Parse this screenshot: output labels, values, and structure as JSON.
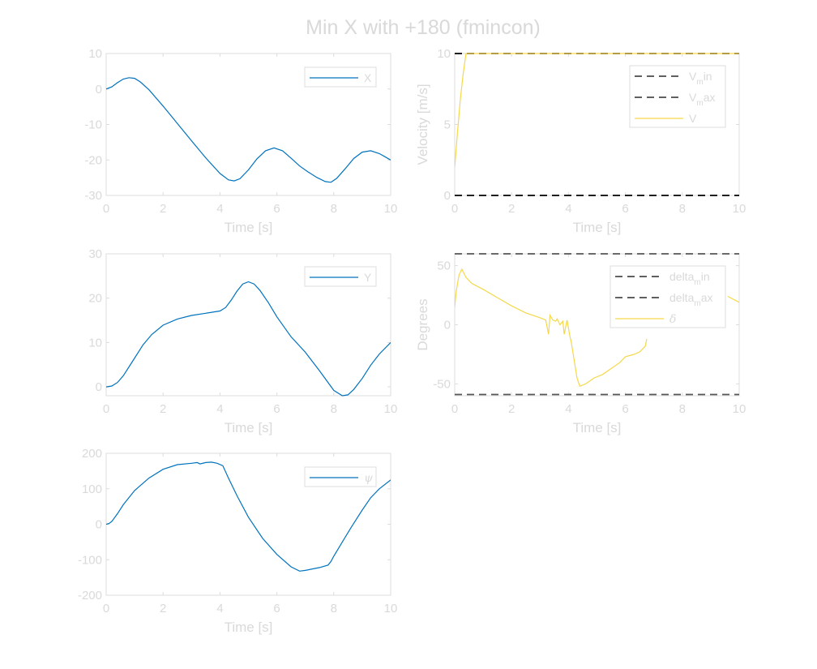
{
  "title": "Min X with +180 (fmincon)",
  "colors": {
    "blue": "#0072bd",
    "yellow": "#f5d84a",
    "grey_dash": "#555555",
    "black_dash": "#000000",
    "axis": "#dcdcdc",
    "text": "#d9d9d9"
  },
  "chart_data": [
    {
      "id": "x",
      "type": "line",
      "xlabel": "Time [s]",
      "ylabel": "",
      "xlim": [
        0,
        10
      ],
      "ylim": [
        -30,
        10
      ],
      "xticks": [
        "0",
        "2",
        "4",
        "6",
        "8",
        "10"
      ],
      "yticks": [
        "-30",
        "-20",
        "-10",
        "0",
        "10"
      ],
      "legend_position": "top-right",
      "series": [
        {
          "legend": "X",
          "color": "#0072bd",
          "style": "solid",
          "x": [
            0,
            0.2,
            0.4,
            0.6,
            0.8,
            1.0,
            1.2,
            1.5,
            2.0,
            2.5,
            3.0,
            3.5,
            4.0,
            4.3,
            4.5,
            4.7,
            5.0,
            5.3,
            5.6,
            5.9,
            6.2,
            6.5,
            6.8,
            7.1,
            7.4,
            7.7,
            7.9,
            8.1,
            8.4,
            8.7,
            9.0,
            9.3,
            9.6,
            9.8,
            10.0
          ],
          "y": [
            0,
            0.6,
            1.8,
            2.8,
            3.2,
            3.0,
            2.0,
            -0.2,
            -4.8,
            -9.7,
            -14.6,
            -19.4,
            -23.8,
            -25.6,
            -25.9,
            -25.3,
            -22.8,
            -19.7,
            -17.4,
            -16.6,
            -17.4,
            -19.5,
            -21.7,
            -23.4,
            -24.9,
            -26.1,
            -26.3,
            -25.2,
            -22.5,
            -19.6,
            -17.8,
            -17.4,
            -18.2,
            -19.1,
            -20.0
          ]
        }
      ]
    },
    {
      "id": "velocity",
      "type": "line",
      "xlabel": "Time [s]",
      "ylabel": "Velocity [m/s]",
      "xlim": [
        0,
        10
      ],
      "ylim": [
        0,
        10
      ],
      "xticks": [
        "0",
        "2",
        "4",
        "6",
        "8",
        "10"
      ],
      "yticks": [
        "0",
        "5",
        "10"
      ],
      "legend_position": "top-right",
      "series": [
        {
          "legend": "V",
          "legend_sub": "m",
          "legend_suffix": "in",
          "color": "#000000",
          "style": "dashed",
          "x": [
            0,
            10
          ],
          "y": [
            0,
            0
          ]
        },
        {
          "legend": "V",
          "legend_sub": "m",
          "legend_suffix": "ax",
          "color": "#000000",
          "style": "dashed",
          "x": [
            0,
            10
          ],
          "y": [
            10,
            10
          ]
        },
        {
          "legend": "V",
          "color": "#f5d84a",
          "style": "solid",
          "x": [
            0,
            0.1,
            0.2,
            0.3,
            0.4,
            0.5,
            10
          ],
          "y": [
            2.0,
            4.5,
            6.8,
            8.6,
            10,
            10,
            10
          ]
        }
      ]
    },
    {
      "id": "y",
      "type": "line",
      "xlabel": "Time [s]",
      "ylabel": "",
      "xlim": [
        0,
        10
      ],
      "ylim": [
        -2,
        30
      ],
      "xticks": [
        "0",
        "2",
        "4",
        "6",
        "8",
        "10"
      ],
      "yticks": [
        "0",
        "10",
        "20",
        "30"
      ],
      "legend_position": "top-right",
      "series": [
        {
          "legend": "Y",
          "color": "#0072bd",
          "style": "solid",
          "x": [
            0,
            0.2,
            0.4,
            0.6,
            0.8,
            1.0,
            1.3,
            1.6,
            2.0,
            2.5,
            3.0,
            3.5,
            4.0,
            4.2,
            4.4,
            4.6,
            4.8,
            5.0,
            5.2,
            5.4,
            5.7,
            6.0,
            6.5,
            7.0,
            7.5,
            8.0,
            8.3,
            8.5,
            8.7,
            9.0,
            9.3,
            9.6,
            10.0
          ],
          "y": [
            0,
            0.2,
            1.0,
            2.5,
            4.5,
            6.5,
            9.5,
            11.8,
            13.9,
            15.3,
            16.1,
            16.6,
            17.1,
            17.9,
            19.6,
            21.6,
            23.2,
            23.7,
            23.2,
            21.8,
            19.0,
            15.8,
            11.3,
            7.8,
            3.6,
            -0.8,
            -2.0,
            -1.8,
            -0.6,
            1.9,
            4.9,
            7.4,
            10.0
          ]
        }
      ]
    },
    {
      "id": "steering",
      "type": "line",
      "xlabel": "Time [s]",
      "ylabel": "Degrees",
      "xlim": [
        0,
        10
      ],
      "ylim": [
        -60,
        60
      ],
      "xticks": [
        "0",
        "2",
        "4",
        "6",
        "8",
        "10"
      ],
      "yticks": [
        "-50",
        "0",
        "50"
      ],
      "legend_position": "top-right",
      "series": [
        {
          "legend": "delta",
          "legend_sub": "m",
          "legend_suffix": "in",
          "color": "#555555",
          "style": "dashed",
          "x": [
            0,
            10
          ],
          "y": [
            -59,
            -59
          ]
        },
        {
          "legend": "delta",
          "legend_sub": "m",
          "legend_suffix": "ax",
          "color": "#555555",
          "style": "dashed",
          "x": [
            0,
            10
          ],
          "y": [
            60,
            60
          ]
        },
        {
          "legend": "δ",
          "color": "#f5d84a",
          "style": "solid",
          "x": [
            0,
            0.05,
            0.15,
            0.25,
            0.4,
            0.6,
            1.0,
            1.5,
            2.0,
            2.5,
            3.0,
            3.2,
            3.3,
            3.35,
            3.45,
            3.55,
            3.6,
            3.7,
            3.8,
            3.85,
            3.95,
            4.05,
            4.1,
            4.2,
            4.3,
            4.4,
            4.6,
            4.9,
            5.2,
            5.5,
            5.8,
            6.0,
            6.3,
            6.5,
            6.7,
            6.75
          ],
          "y": [
            15,
            28,
            42,
            47,
            40,
            35,
            30,
            23,
            16,
            10,
            6,
            4,
            -8,
            8,
            4,
            3,
            5,
            0,
            3,
            -8,
            4,
            -10,
            -15,
            -30,
            -45,
            -52,
            -50,
            -45,
            -42,
            -37,
            -32,
            -27,
            -25,
            -23,
            -18,
            -12
          ]
        }
      ],
      "extra_segment": {
        "x": [
          9.6,
          10.0
        ],
        "y": [
          24,
          19
        ]
      }
    },
    {
      "id": "psi",
      "type": "line",
      "xlabel": "Time [s]",
      "ylabel": "",
      "xlim": [
        0,
        10
      ],
      "ylim": [
        -200,
        200
      ],
      "xticks": [
        "0",
        "2",
        "4",
        "6",
        "8",
        "10"
      ],
      "yticks": [
        "-200",
        "-100",
        "0",
        "100",
        "200"
      ],
      "legend_position": "top-right",
      "series": [
        {
          "legend": "ψ",
          "color": "#0072bd",
          "style": "solid",
          "x": [
            0,
            0.1,
            0.2,
            0.4,
            0.6,
            1.0,
            1.5,
            2.0,
            2.5,
            3.0,
            3.2,
            3.3,
            3.5,
            3.7,
            3.9,
            4.1,
            4.3,
            4.6,
            5.0,
            5.5,
            6.0,
            6.5,
            6.8,
            7.0,
            7.5,
            7.8,
            7.9,
            8.0,
            8.3,
            8.6,
            9.0,
            9.3,
            9.6,
            10.0
          ],
          "y": [
            0,
            2,
            8,
            30,
            55,
            95,
            130,
            155,
            168,
            172,
            174,
            170,
            174,
            175,
            172,
            165,
            130,
            80,
            20,
            -40,
            -85,
            -120,
            -132,
            -130,
            -122,
            -115,
            -105,
            -90,
            -50,
            -10,
            40,
            75,
            100,
            125
          ]
        }
      ]
    }
  ]
}
